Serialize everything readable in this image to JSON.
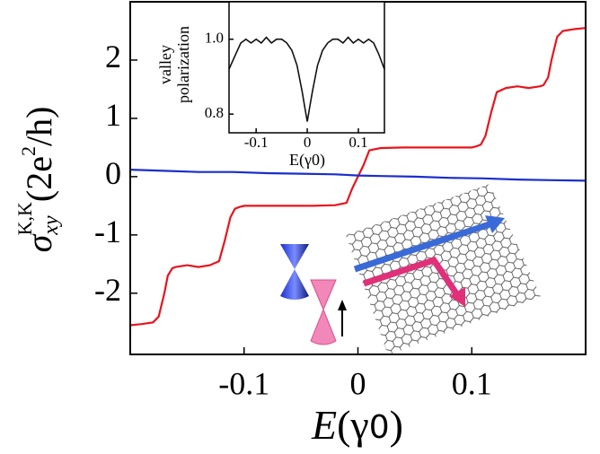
{
  "chart_data": [
    {
      "type": "line",
      "xlabel_parts": [
        "E",
        "(γ",
        "0",
        ")"
      ],
      "ylabel_parts": [
        "σ",
        "xy",
        "K,K",
        "(2e",
        "2",
        "/h)"
      ],
      "xlim": [
        -0.2,
        0.2
      ],
      "ylim": [
        -3.05,
        3.0
      ],
      "xticks": [
        -0.1,
        0,
        0.1
      ],
      "yticks": [
        -2,
        -1,
        0,
        1,
        2
      ],
      "series": [
        {
          "color": "#e8141c",
          "x": [
            -0.2,
            -0.19,
            -0.18,
            -0.175,
            -0.17,
            -0.167,
            -0.163,
            -0.16,
            -0.15,
            -0.14,
            -0.13,
            -0.122,
            -0.117,
            -0.112,
            -0.108,
            -0.104,
            -0.1,
            -0.08,
            -0.06,
            -0.04,
            -0.02,
            -0.01,
            -0.005,
            0,
            0.005,
            0.01,
            0.02,
            0.04,
            0.06,
            0.08,
            0.1,
            0.104,
            0.108,
            0.112,
            0.117,
            0.122,
            0.13,
            0.14,
            0.15,
            0.16,
            0.163,
            0.167,
            0.17,
            0.175,
            0.18,
            0.19,
            0.2
          ],
          "y": [
            -2.55,
            -2.53,
            -2.5,
            -2.4,
            -2.0,
            -1.7,
            -1.57,
            -1.55,
            -1.52,
            -1.55,
            -1.52,
            -1.45,
            -1.1,
            -0.7,
            -0.55,
            -0.52,
            -0.5,
            -0.5,
            -0.5,
            -0.5,
            -0.49,
            -0.45,
            -0.2,
            0,
            0.2,
            0.45,
            0.49,
            0.5,
            0.5,
            0.5,
            0.5,
            0.52,
            0.55,
            0.7,
            1.1,
            1.45,
            1.52,
            1.55,
            1.52,
            1.55,
            1.57,
            1.7,
            2.0,
            2.4,
            2.5,
            2.53,
            2.55
          ]
        },
        {
          "color": "#1a2ecc",
          "x": [
            -0.2,
            -0.17,
            -0.14,
            -0.11,
            -0.08,
            -0.05,
            -0.02,
            0,
            0.02,
            0.05,
            0.08,
            0.11,
            0.14,
            0.17,
            0.2
          ],
          "y": [
            0.12,
            0.1,
            0.08,
            0.08,
            0.06,
            0.05,
            0.04,
            0.02,
            0.01,
            0.0,
            -0.02,
            -0.03,
            -0.05,
            -0.06,
            -0.07
          ]
        }
      ]
    },
    {
      "type": "line",
      "xlabel": "E(γ0)",
      "ylabel_lines": [
        "valley",
        "polarization"
      ],
      "xlim": [
        -0.153,
        0.151
      ],
      "ylim": [
        0.75,
        1.1
      ],
      "xticks": [
        -0.1,
        0,
        0.1
      ],
      "yticks": [
        0.8,
        {
          "value": 1,
          "label": "1.0"
        }
      ],
      "series": [
        {
          "color": "#111111",
          "x": [
            -0.153,
            -0.14,
            -0.13,
            -0.12,
            -0.11,
            -0.1,
            -0.09,
            -0.08,
            -0.07,
            -0.06,
            -0.05,
            -0.04,
            -0.03,
            -0.02,
            -0.01,
            -0.005,
            0,
            0.005,
            0.01,
            0.02,
            0.03,
            0.04,
            0.05,
            0.06,
            0.07,
            0.08,
            0.09,
            0.1,
            0.11,
            0.12,
            0.13,
            0.14,
            0.151
          ],
          "y": [
            0.92,
            0.96,
            0.99,
            1.0,
            0.99,
            1.0,
            0.99,
            1.005,
            0.99,
            1.0,
            1.0,
            0.99,
            0.97,
            0.93,
            0.86,
            0.82,
            0.78,
            0.82,
            0.86,
            0.93,
            0.97,
            0.99,
            1.0,
            1.0,
            0.99,
            1.005,
            0.99,
            1.0,
            0.99,
            1.0,
            0.99,
            0.96,
            0.92
          ]
        }
      ]
    }
  ]
}
